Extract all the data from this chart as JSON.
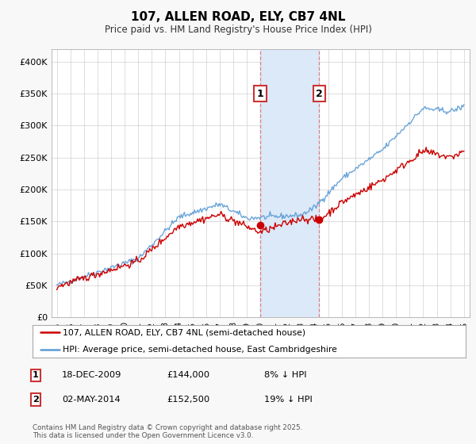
{
  "title": "107, ALLEN ROAD, ELY, CB7 4NL",
  "subtitle": "Price paid vs. HM Land Registry's House Price Index (HPI)",
  "background_color": "#f8f8f8",
  "plot_bg": "#ffffff",
  "ylim": [
    0,
    420000
  ],
  "yticks": [
    0,
    50000,
    100000,
    150000,
    200000,
    250000,
    300000,
    350000,
    400000
  ],
  "ytick_labels": [
    "£0",
    "£50K",
    "£100K",
    "£150K",
    "£200K",
    "£250K",
    "£300K",
    "£350K",
    "£400K"
  ],
  "xlim_start": 1994.6,
  "xlim_end": 2025.4,
  "xticks": [
    1995,
    1996,
    1997,
    1998,
    1999,
    2000,
    2001,
    2002,
    2003,
    2004,
    2005,
    2006,
    2007,
    2008,
    2009,
    2010,
    2011,
    2012,
    2013,
    2014,
    2015,
    2016,
    2017,
    2018,
    2019,
    2020,
    2021,
    2022,
    2023,
    2024,
    2025
  ],
  "hpi_color": "#5b9bd5",
  "price_color": "#cc0000",
  "vline1_x": 2009.97,
  "vline2_x": 2014.34,
  "vband_color": "#dbe9f8",
  "sale1_x": 2009.97,
  "sale1_y": 144000,
  "sale2_x": 2014.34,
  "sale2_y": 152500,
  "legend_label1": "107, ALLEN ROAD, ELY, CB7 4NL (semi-detached house)",
  "legend_label2": "HPI: Average price, semi-detached house, East Cambridgeshire",
  "transaction1_label": "1",
  "transaction1_date": "18-DEC-2009",
  "transaction1_price": "£144,000",
  "transaction1_hpi": "8% ↓ HPI",
  "transaction2_label": "2",
  "transaction2_date": "02-MAY-2014",
  "transaction2_price": "£152,500",
  "transaction2_hpi": "19% ↓ HPI",
  "footnote": "Contains HM Land Registry data © Crown copyright and database right 2025.\nThis data is licensed under the Open Government Licence v3.0."
}
